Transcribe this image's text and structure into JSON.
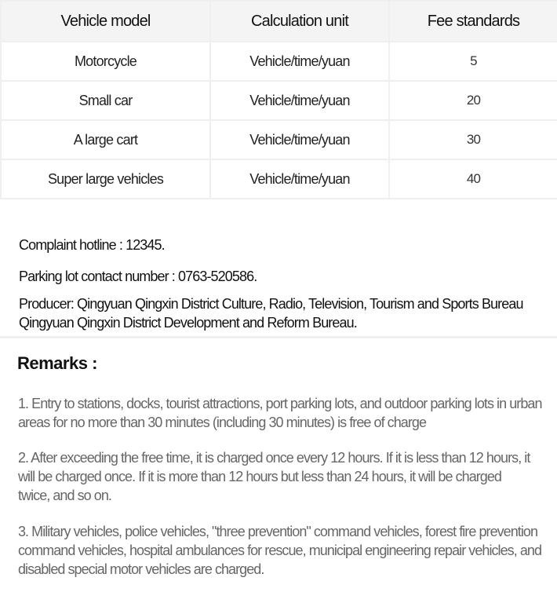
{
  "table": {
    "headers": [
      "Vehicle model",
      "Calculation unit",
      "Fee standards"
    ],
    "rows": [
      [
        "Motorcycle",
        "Vehicle/time/yuan",
        "5"
      ],
      [
        "Small car",
        "Vehicle/time/yuan",
        "20"
      ],
      [
        "A large cart",
        "Vehicle/time/yuan",
        "30"
      ],
      [
        "Super large vehicles",
        "Vehicle/time/yuan",
        "40"
      ]
    ]
  },
  "info": {
    "hotline": "Complaint hotline : 12345.",
    "contact": "Parking lot contact number : 0763-520586.",
    "producer": "Producer: Qingyuan Qingxin District Culture, Radio, Television, Tourism and Sports Bureau Qingyuan Qingxin District Development and Reform Bureau."
  },
  "remarks": {
    "title": "Remarks :",
    "items": [
      "1. Entry to stations, docks, tourist attractions, port parking lots, and outdoor parking lots in urban areas for no more than 30 minutes (including 30 minutes) is free of charge",
      "2. After exceeding the free time, it is charged once every 12 hours. If it is less than 12 hours, it will be charged once. If it is more than 12 hours but less than 24 hours, it will be charged twice, and so on.",
      "3. Military vehicles, police vehicles, \"three prevention\" command vehicles, forest fire prevention command vehicles, hospital ambulances for rescue, municipal engineering repair vehicles, and disabled special motor vehicles are charged."
    ]
  }
}
